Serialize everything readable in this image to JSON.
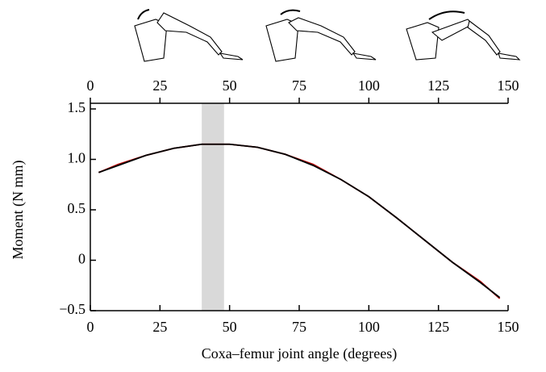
{
  "chart_data": {
    "type": "line",
    "x_label": "Coxa–femur joint angle (degrees)",
    "y_label": "Moment (N mm)",
    "xlim": [
      0,
      150
    ],
    "xticks": [
      0,
      25,
      50,
      75,
      100,
      125,
      150
    ],
    "ylim": [
      -0.5,
      1.5
    ],
    "yticks": [
      {
        "value": -0.5,
        "label": "−0.5"
      },
      0,
      0.5,
      {
        "value": 1.0,
        "label": "1.0"
      },
      1.5
    ],
    "highlight": [
      40,
      48
    ],
    "highlight_color": "#d9d9d9",
    "x": [
      3,
      10,
      20,
      30,
      40,
      50,
      60,
      70,
      80,
      90,
      100,
      110,
      120,
      130,
      140,
      147
    ],
    "series": [
      {
        "color": "#c00000",
        "values": [
          0.87,
          0.95,
          1.04,
          1.11,
          1.15,
          1.15,
          1.12,
          1.05,
          0.95,
          0.8,
          0.63,
          0.42,
          0.2,
          -0.02,
          -0.21,
          -0.38
        ]
      },
      {
        "color": "#000000",
        "values": [
          0.87,
          0.94,
          1.04,
          1.11,
          1.15,
          1.15,
          1.12,
          1.05,
          0.94,
          0.8,
          0.63,
          0.42,
          0.2,
          -0.02,
          -0.22,
          -0.37
        ]
      }
    ]
  }
}
